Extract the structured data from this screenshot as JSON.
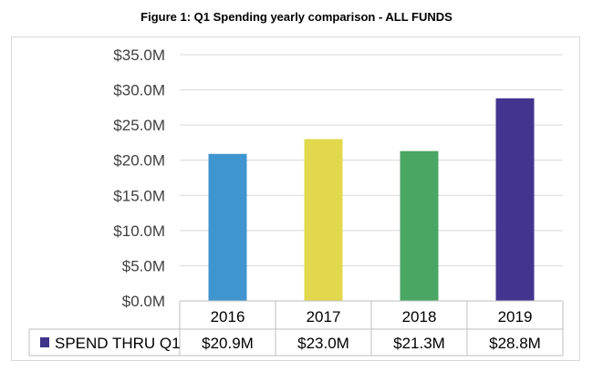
{
  "chart_data": {
    "type": "bar",
    "title": "Figure 1: Q1 Spending yearly comparison - ALL FUNDS",
    "categories": [
      "2016",
      "2017",
      "2018",
      "2019"
    ],
    "series": [
      {
        "name": "SPEND THRU Q1",
        "values": [
          20.9,
          23.0,
          21.3,
          28.8
        ],
        "value_labels": [
          "$20.9M",
          "$23.0M",
          "$21.3M",
          "$28.8M"
        ],
        "color": "#3d3489"
      }
    ],
    "bar_colors": [
      "#3f95cf",
      "#e1d94b",
      "#49a763",
      "#43358f"
    ],
    "ylim": [
      0,
      35
    ],
    "yticks": [
      0,
      5,
      10,
      15,
      20,
      25,
      30,
      35
    ],
    "ytick_labels": [
      "$0.0M",
      "$5.0M",
      "$10.0M",
      "$15.0M",
      "$20.0M",
      "$25.0M",
      "$30.0M",
      "$35.0M"
    ],
    "grid": true,
    "legend": "data-table"
  }
}
